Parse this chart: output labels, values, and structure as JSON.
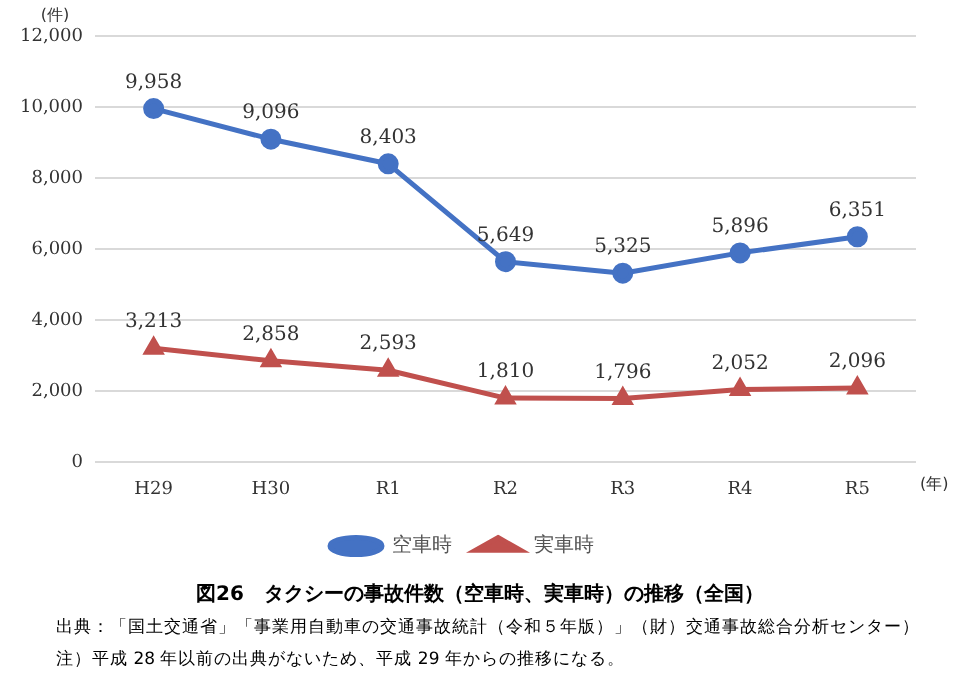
{
  "chart_data": {
    "type": "line",
    "title": "図26　タクシーの事故件数（空車時、実車時）の推移（全国）",
    "ylabel": "(件)",
    "xlabel": "(年)",
    "annotations": [
      "出典：「国土交通省」「事業用自動車の交通事故統計（令和５年版）」（財）交通事故総合分析センター）",
      "注）平成 28 年以前の出典がないため、平成 29 年からの推移になる。"
    ],
    "categories": [
      "H29",
      "H30",
      "R1",
      "R2",
      "R3",
      "R4",
      "R5"
    ],
    "series": [
      {
        "name": "空車時",
        "color": "#4472c4",
        "marker": "circle",
        "values": [
          9958,
          9096,
          8403,
          5649,
          5325,
          5896,
          6351
        ],
        "value_labels": [
          "9,958",
          "9,096",
          "8,403",
          "5,649",
          "5,325",
          "5,896",
          "6,351"
        ]
      },
      {
        "name": "実車時",
        "color": "#c0504d",
        "marker": "triangle",
        "values": [
          3213,
          2858,
          2593,
          1810,
          1796,
          2052,
          2096
        ],
        "value_labels": [
          "3,213",
          "2,858",
          "2,593",
          "1,810",
          "1,796",
          "2,052",
          "2,096"
        ]
      }
    ],
    "ylim": [
      0,
      12000
    ],
    "yticks": [
      {
        "value": 0,
        "label": "0"
      },
      {
        "value": 2000,
        "label": "2,000"
      },
      {
        "value": 4000,
        "label": "4,000"
      },
      {
        "value": 6000,
        "label": "6,000"
      },
      {
        "value": 8000,
        "label": "8,000"
      },
      {
        "value": 10000,
        "label": "10,000"
      },
      {
        "value": 12000,
        "label": "12,000"
      }
    ],
    "grid": "y",
    "legend": "bottom",
    "line_style": "solid"
  }
}
